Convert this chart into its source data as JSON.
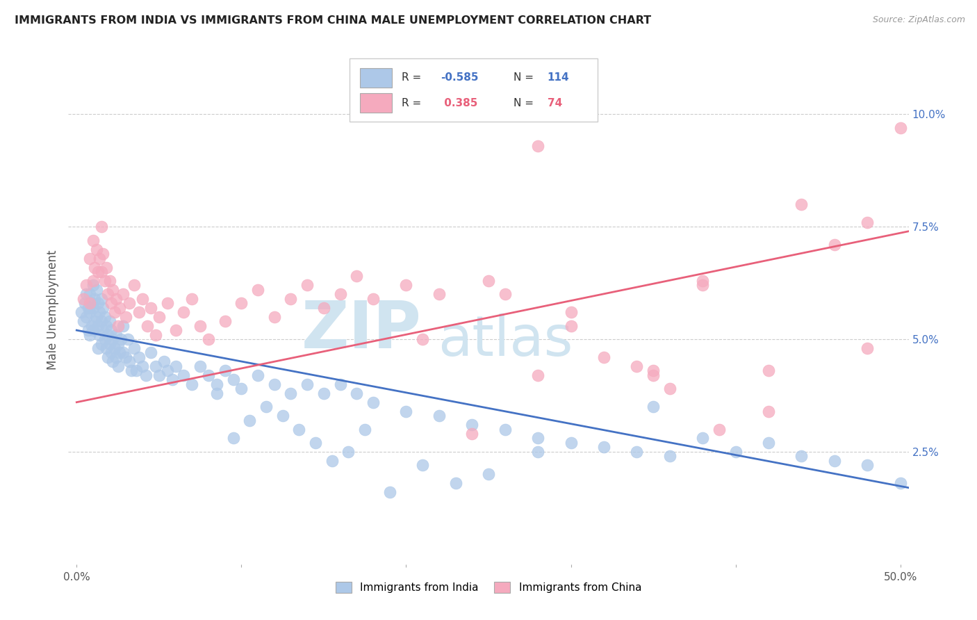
{
  "title": "IMMIGRANTS FROM INDIA VS IMMIGRANTS FROM CHINA MALE UNEMPLOYMENT CORRELATION CHART",
  "source": "Source: ZipAtlas.com",
  "ylabel": "Male Unemployment",
  "x_tick_positions": [
    0.0,
    0.1,
    0.2,
    0.3,
    0.4,
    0.5
  ],
  "x_tick_labels_sparse": [
    "0.0%",
    "",
    "",
    "",
    "",
    "50.0%"
  ],
  "y_tick_positions": [
    0.025,
    0.05,
    0.075,
    0.1
  ],
  "y_tick_labels": [
    "2.5%",
    "5.0%",
    "7.5%",
    "10.0%"
  ],
  "xlim": [
    -0.005,
    0.505
  ],
  "ylim": [
    0.0,
    0.113
  ],
  "india_color": "#adc8e8",
  "china_color": "#f5aabe",
  "india_line_color": "#4472c4",
  "china_line_color": "#e8607a",
  "watermark_color": "#d0e4f0",
  "india_line_start_x": 0.0,
  "india_line_start_y": 0.052,
  "india_line_end_x": 0.505,
  "india_line_end_y": 0.017,
  "china_line_start_x": 0.0,
  "china_line_start_y": 0.036,
  "china_line_end_x": 0.505,
  "china_line_end_y": 0.074,
  "india_R": "-0.585",
  "india_N": "114",
  "china_R": "0.385",
  "china_N": "74",
  "india_points_x": [
    0.003,
    0.004,
    0.005,
    0.006,
    0.006,
    0.007,
    0.007,
    0.008,
    0.008,
    0.008,
    0.009,
    0.009,
    0.01,
    0.01,
    0.01,
    0.011,
    0.011,
    0.012,
    0.012,
    0.013,
    0.013,
    0.013,
    0.014,
    0.014,
    0.015,
    0.015,
    0.015,
    0.016,
    0.016,
    0.017,
    0.017,
    0.018,
    0.018,
    0.019,
    0.019,
    0.02,
    0.02,
    0.021,
    0.021,
    0.022,
    0.022,
    0.023,
    0.024,
    0.024,
    0.025,
    0.025,
    0.026,
    0.027,
    0.028,
    0.028,
    0.03,
    0.031,
    0.032,
    0.033,
    0.035,
    0.036,
    0.038,
    0.04,
    0.042,
    0.045,
    0.048,
    0.05,
    0.053,
    0.055,
    0.058,
    0.06,
    0.065,
    0.07,
    0.075,
    0.08,
    0.085,
    0.09,
    0.095,
    0.1,
    0.11,
    0.12,
    0.13,
    0.14,
    0.15,
    0.16,
    0.17,
    0.18,
    0.2,
    0.22,
    0.24,
    0.26,
    0.28,
    0.3,
    0.32,
    0.34,
    0.36,
    0.38,
    0.4,
    0.42,
    0.44,
    0.46,
    0.48,
    0.5,
    0.35,
    0.28,
    0.25,
    0.23,
    0.21,
    0.19,
    0.175,
    0.165,
    0.155,
    0.145,
    0.135,
    0.125,
    0.115,
    0.105,
    0.095,
    0.085
  ],
  "india_points_y": [
    0.056,
    0.054,
    0.058,
    0.06,
    0.055,
    0.057,
    0.052,
    0.06,
    0.056,
    0.051,
    0.058,
    0.053,
    0.062,
    0.057,
    0.052,
    0.059,
    0.054,
    0.061,
    0.055,
    0.058,
    0.053,
    0.048,
    0.056,
    0.051,
    0.059,
    0.054,
    0.049,
    0.057,
    0.052,
    0.055,
    0.05,
    0.053,
    0.048,
    0.051,
    0.046,
    0.054,
    0.049,
    0.052,
    0.047,
    0.05,
    0.045,
    0.048,
    0.051,
    0.046,
    0.049,
    0.044,
    0.047,
    0.05,
    0.053,
    0.047,
    0.046,
    0.05,
    0.045,
    0.043,
    0.048,
    0.043,
    0.046,
    0.044,
    0.042,
    0.047,
    0.044,
    0.042,
    0.045,
    0.043,
    0.041,
    0.044,
    0.042,
    0.04,
    0.044,
    0.042,
    0.04,
    0.043,
    0.041,
    0.039,
    0.042,
    0.04,
    0.038,
    0.04,
    0.038,
    0.04,
    0.038,
    0.036,
    0.034,
    0.033,
    0.031,
    0.03,
    0.028,
    0.027,
    0.026,
    0.025,
    0.024,
    0.028,
    0.025,
    0.027,
    0.024,
    0.023,
    0.022,
    0.018,
    0.035,
    0.025,
    0.02,
    0.018,
    0.022,
    0.016,
    0.03,
    0.025,
    0.023,
    0.027,
    0.03,
    0.033,
    0.035,
    0.032,
    0.028,
    0.038
  ],
  "china_points_x": [
    0.004,
    0.006,
    0.008,
    0.008,
    0.01,
    0.01,
    0.011,
    0.012,
    0.013,
    0.014,
    0.015,
    0.015,
    0.016,
    0.017,
    0.018,
    0.019,
    0.02,
    0.021,
    0.022,
    0.023,
    0.024,
    0.025,
    0.026,
    0.028,
    0.03,
    0.032,
    0.035,
    0.038,
    0.04,
    0.043,
    0.045,
    0.048,
    0.05,
    0.055,
    0.06,
    0.065,
    0.07,
    0.075,
    0.08,
    0.09,
    0.1,
    0.11,
    0.12,
    0.13,
    0.14,
    0.15,
    0.16,
    0.17,
    0.18,
    0.2,
    0.22,
    0.25,
    0.28,
    0.3,
    0.34,
    0.35,
    0.36,
    0.38,
    0.39,
    0.42,
    0.44,
    0.46,
    0.48,
    0.5,
    0.48,
    0.42,
    0.38,
    0.35,
    0.32,
    0.3,
    0.28,
    0.26,
    0.24,
    0.21
  ],
  "china_points_y": [
    0.059,
    0.062,
    0.068,
    0.058,
    0.072,
    0.063,
    0.066,
    0.07,
    0.065,
    0.068,
    0.075,
    0.065,
    0.069,
    0.063,
    0.066,
    0.06,
    0.063,
    0.058,
    0.061,
    0.056,
    0.059,
    0.053,
    0.057,
    0.06,
    0.055,
    0.058,
    0.062,
    0.056,
    0.059,
    0.053,
    0.057,
    0.051,
    0.055,
    0.058,
    0.052,
    0.056,
    0.059,
    0.053,
    0.05,
    0.054,
    0.058,
    0.061,
    0.055,
    0.059,
    0.062,
    0.057,
    0.06,
    0.064,
    0.059,
    0.062,
    0.06,
    0.063,
    0.093,
    0.053,
    0.044,
    0.043,
    0.039,
    0.062,
    0.03,
    0.043,
    0.08,
    0.071,
    0.048,
    0.097,
    0.076,
    0.034,
    0.063,
    0.042,
    0.046,
    0.056,
    0.042,
    0.06,
    0.029,
    0.05
  ]
}
